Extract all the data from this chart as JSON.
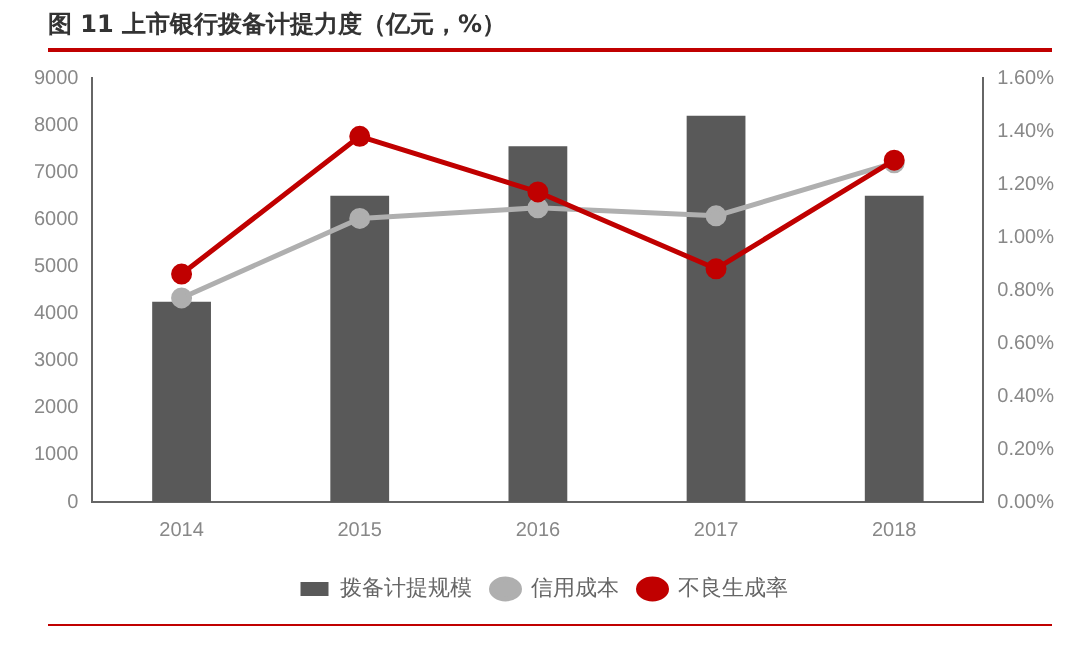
{
  "chart_data": {
    "type": "bar",
    "title": "图 11 上市银行拨备计提力度（亿元，%）",
    "categories": [
      "2014",
      "2015",
      "2016",
      "2017",
      "2018"
    ],
    "series": [
      {
        "name": "拨备计提规模",
        "color": "#595959",
        "values": [
          4250,
          6500,
          7550,
          8200,
          6500
        ]
      },
      {
        "name": "信用成本",
        "type": "line",
        "axis": "y2",
        "color": "#afafaf",
        "values": [
          0.77,
          1.07,
          1.11,
          1.08,
          1.28
        ]
      },
      {
        "name": "不良生成率",
        "type": "line",
        "axis": "y2",
        "color": "#c00000",
        "values": [
          0.86,
          1.38,
          1.17,
          0.88,
          1.29
        ]
      }
    ],
    "ylim": [
      0,
      9000
    ],
    "yticks": [
      0,
      1000,
      2000,
      3000,
      4000,
      5000,
      6000,
      7000,
      8000,
      9000
    ],
    "y2lim": [
      0,
      1.6
    ],
    "y2ticks": [
      {
        "value": 0,
        "label": "0.00%"
      },
      {
        "value": 0.2,
        "label": "0.20%"
      },
      {
        "value": 0.4,
        "label": "0.40%"
      },
      {
        "value": 0.6,
        "label": "0.60%"
      },
      {
        "value": 0.8,
        "label": "0.80%"
      },
      {
        "value": 1.0,
        "label": "1.00%"
      },
      {
        "value": 1.2,
        "label": "1.20%"
      },
      {
        "value": 1.4,
        "label": "1.40%"
      },
      {
        "value": 1.6,
        "label": "1.60%"
      }
    ],
    "grid": false,
    "legend": "bottom",
    "marker": "circle",
    "line_style": "solid"
  }
}
